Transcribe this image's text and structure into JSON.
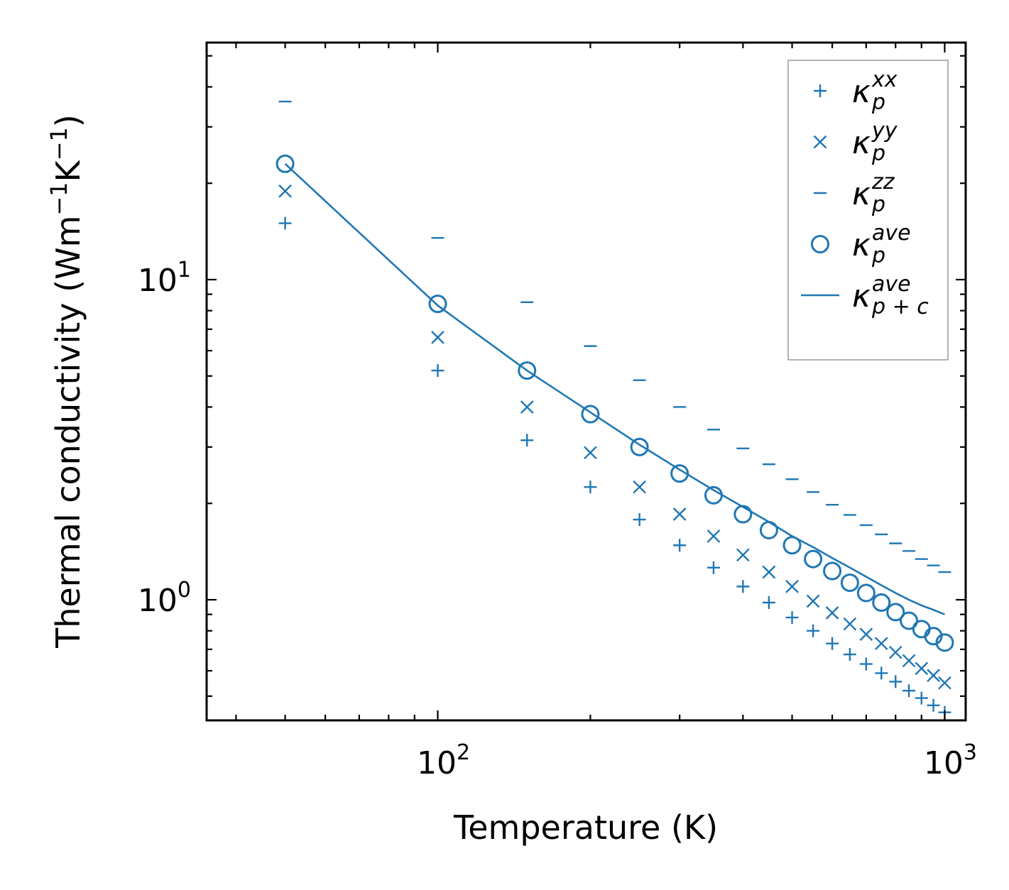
{
  "chart_data": {
    "type": "scatter",
    "xscale": "log",
    "yscale": "log",
    "xlim": [
      35,
      1100
    ],
    "ylim": [
      0.42,
      55
    ],
    "xlabel": "Temperature (K)",
    "ylabel": {
      "base": "Thermal conductivity (Wm",
      "exp1": "−1",
      "mid": "K",
      "exp2": "−1",
      "end": ")"
    },
    "xticks": [
      {
        "value": 100,
        "base": "10",
        "exp": "2"
      },
      {
        "value": 1000,
        "base": "10",
        "exp": "3"
      }
    ],
    "yticks": [
      {
        "value": 1,
        "base": "10",
        "exp": "0"
      },
      {
        "value": 10,
        "base": "10",
        "exp": "1"
      }
    ],
    "color": "#1f77b4",
    "series": [
      {
        "name": "kxx",
        "marker": "plus",
        "legend": {
          "main": "κ",
          "sup": "xx",
          "sub": "p"
        },
        "x": [
          50,
          100,
          150,
          200,
          250,
          300,
          350,
          400,
          450,
          500,
          550,
          600,
          650,
          700,
          750,
          800,
          850,
          900,
          950,
          1000
        ],
        "y": [
          15.0,
          5.2,
          3.15,
          2.25,
          1.78,
          1.48,
          1.26,
          1.1,
          0.98,
          0.88,
          0.8,
          0.73,
          0.675,
          0.63,
          0.59,
          0.555,
          0.52,
          0.493,
          0.468,
          0.445
        ]
      },
      {
        "name": "kyy",
        "marker": "x",
        "legend": {
          "main": "κ",
          "sup": "yy",
          "sub": "p"
        },
        "x": [
          50,
          100,
          150,
          200,
          250,
          300,
          350,
          400,
          450,
          500,
          550,
          600,
          650,
          700,
          750,
          800,
          850,
          900,
          950,
          1000
        ],
        "y": [
          18.9,
          6.6,
          4.0,
          2.88,
          2.25,
          1.85,
          1.58,
          1.38,
          1.22,
          1.1,
          0.99,
          0.91,
          0.84,
          0.78,
          0.73,
          0.685,
          0.645,
          0.61,
          0.58,
          0.55
        ]
      },
      {
        "name": "kzz",
        "marker": "dash",
        "legend": {
          "main": "κ",
          "sup": "zz",
          "sub": "p"
        },
        "x": [
          50,
          100,
          150,
          200,
          250,
          300,
          350,
          400,
          450,
          500,
          550,
          600,
          650,
          700,
          750,
          800,
          850,
          900,
          950,
          1000
        ],
        "y": [
          36.0,
          13.5,
          8.5,
          6.2,
          4.85,
          4.0,
          3.4,
          2.97,
          2.65,
          2.38,
          2.17,
          1.98,
          1.84,
          1.71,
          1.6,
          1.5,
          1.42,
          1.34,
          1.28,
          1.22
        ]
      },
      {
        "name": "kave",
        "marker": "circle",
        "legend": {
          "main": "κ",
          "sup": "ave",
          "sub": "p"
        },
        "x": [
          50,
          100,
          150,
          200,
          250,
          300,
          350,
          400,
          450,
          500,
          550,
          600,
          650,
          700,
          750,
          800,
          850,
          900,
          950,
          1000
        ],
        "y": [
          23.0,
          8.4,
          5.2,
          3.8,
          3.0,
          2.48,
          2.12,
          1.85,
          1.65,
          1.48,
          1.34,
          1.23,
          1.13,
          1.05,
          0.98,
          0.915,
          0.86,
          0.81,
          0.77,
          0.735
        ]
      },
      {
        "name": "kave_pc",
        "marker": "line",
        "legend": {
          "main": "κ",
          "sup": "ave",
          "sub": "p + c"
        },
        "x": [
          50,
          100,
          150,
          200,
          250,
          300,
          350,
          400,
          450,
          500,
          550,
          600,
          650,
          700,
          750,
          800,
          850,
          900,
          950,
          1000
        ],
        "y": [
          23.0,
          8.3,
          5.2,
          3.85,
          3.05,
          2.55,
          2.2,
          1.95,
          1.75,
          1.58,
          1.46,
          1.35,
          1.26,
          1.18,
          1.11,
          1.05,
          1.0,
          0.96,
          0.93,
          0.9
        ]
      }
    ]
  }
}
